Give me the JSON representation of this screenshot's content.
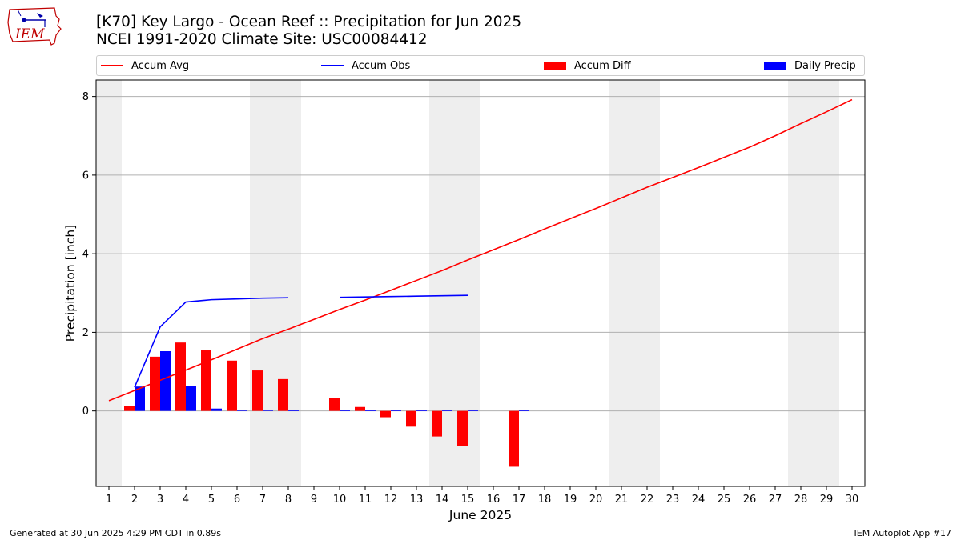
{
  "header": {
    "title_line1": "[K70] Key Largo - Ocean Reef :: Precipitation for Jun 2025",
    "title_line2": "NCEI 1991-2020 Climate Site: USC00084412",
    "logo_text": "IEM"
  },
  "footer": {
    "left": "Generated at 30 Jun 2025 4:29 PM CDT in 0.89s",
    "right": "IEM Autoplot App #17"
  },
  "colors": {
    "avg": "#ff0000",
    "obs": "#0000ff",
    "diff": "#ff0000",
    "daily": "#0000ff",
    "weekend_band": "#eeeeee",
    "grid": "#b0b0b0"
  },
  "chart_data": {
    "type": "bar",
    "title": "[K70] Key Largo - Ocean Reef :: Precipitation for Jun 2025",
    "subtitle": "NCEI 1991-2020 Climate Site: USC00084412",
    "xlabel": "June 2025",
    "ylabel": "Precipitation [inch]",
    "x": [
      1,
      2,
      3,
      4,
      5,
      6,
      7,
      8,
      9,
      10,
      11,
      12,
      13,
      14,
      15,
      16,
      17,
      18,
      19,
      20,
      21,
      22,
      23,
      24,
      25,
      26,
      27,
      28,
      29,
      30
    ],
    "xlim": [
      0.5,
      30.5
    ],
    "ylim": [
      -1.92,
      8.42
    ],
    "yticks": [
      0,
      2,
      4,
      6,
      8
    ],
    "grid": "horizontal",
    "legend_position": "top",
    "weekend_bands": [
      [
        0.5,
        1.5
      ],
      [
        6.5,
        8.5
      ],
      [
        13.5,
        15.5
      ],
      [
        20.5,
        22.5
      ],
      [
        27.5,
        29.5
      ]
    ],
    "legend": [
      "Accum Avg",
      "Accum Obs",
      "Accum Diff",
      "Daily Precip"
    ],
    "series": [
      {
        "name": "Accum Avg",
        "kind": "line",
        "x": [
          1,
          2,
          3,
          4,
          5,
          6,
          7,
          8,
          9,
          10,
          11,
          12,
          13,
          14,
          15,
          16,
          17,
          18,
          19,
          20,
          21,
          22,
          23,
          24,
          25,
          26,
          27,
          28,
          29,
          30
        ],
        "values": [
          0.26,
          0.52,
          0.78,
          1.04,
          1.3,
          1.57,
          1.84,
          2.08,
          2.33,
          2.58,
          2.82,
          3.07,
          3.32,
          3.57,
          3.84,
          4.1,
          4.36,
          4.63,
          4.89,
          5.15,
          5.42,
          5.69,
          5.94,
          6.19,
          6.45,
          6.71,
          7.0,
          7.31,
          7.61,
          7.92
        ]
      },
      {
        "name": "Accum Obs",
        "kind": "line",
        "segments": [
          {
            "x": [
              2,
              3,
              4,
              5,
              6,
              7,
              8
            ],
            "values": [
              0.6,
              2.14,
              2.77,
              2.83,
              2.85,
              2.87,
              2.88
            ]
          },
          {
            "x": [
              10,
              11,
              12,
              13,
              14,
              15
            ],
            "values": [
              2.89,
              2.9,
              2.91,
              2.92,
              2.93,
              2.94
            ]
          }
        ]
      },
      {
        "name": "Accum Diff",
        "kind": "bar",
        "x": [
          2,
          3,
          4,
          5,
          6,
          7,
          8,
          10,
          11,
          12,
          13,
          14,
          15,
          17
        ],
        "values": [
          0.12,
          1.38,
          1.74,
          1.54,
          1.28,
          1.03,
          0.81,
          0.32,
          0.1,
          -0.16,
          -0.4,
          -0.65,
          -0.9,
          -1.42
        ]
      },
      {
        "name": "Daily Precip",
        "kind": "bar",
        "x": [
          2,
          3,
          4,
          5,
          6,
          7,
          8,
          10,
          11,
          12,
          13,
          14,
          15,
          17
        ],
        "values": [
          0.62,
          1.52,
          0.63,
          0.06,
          0.02,
          0.02,
          0.01,
          0.01,
          0.01,
          0.01,
          0.01,
          0.01,
          0.01,
          0.01
        ]
      }
    ]
  }
}
